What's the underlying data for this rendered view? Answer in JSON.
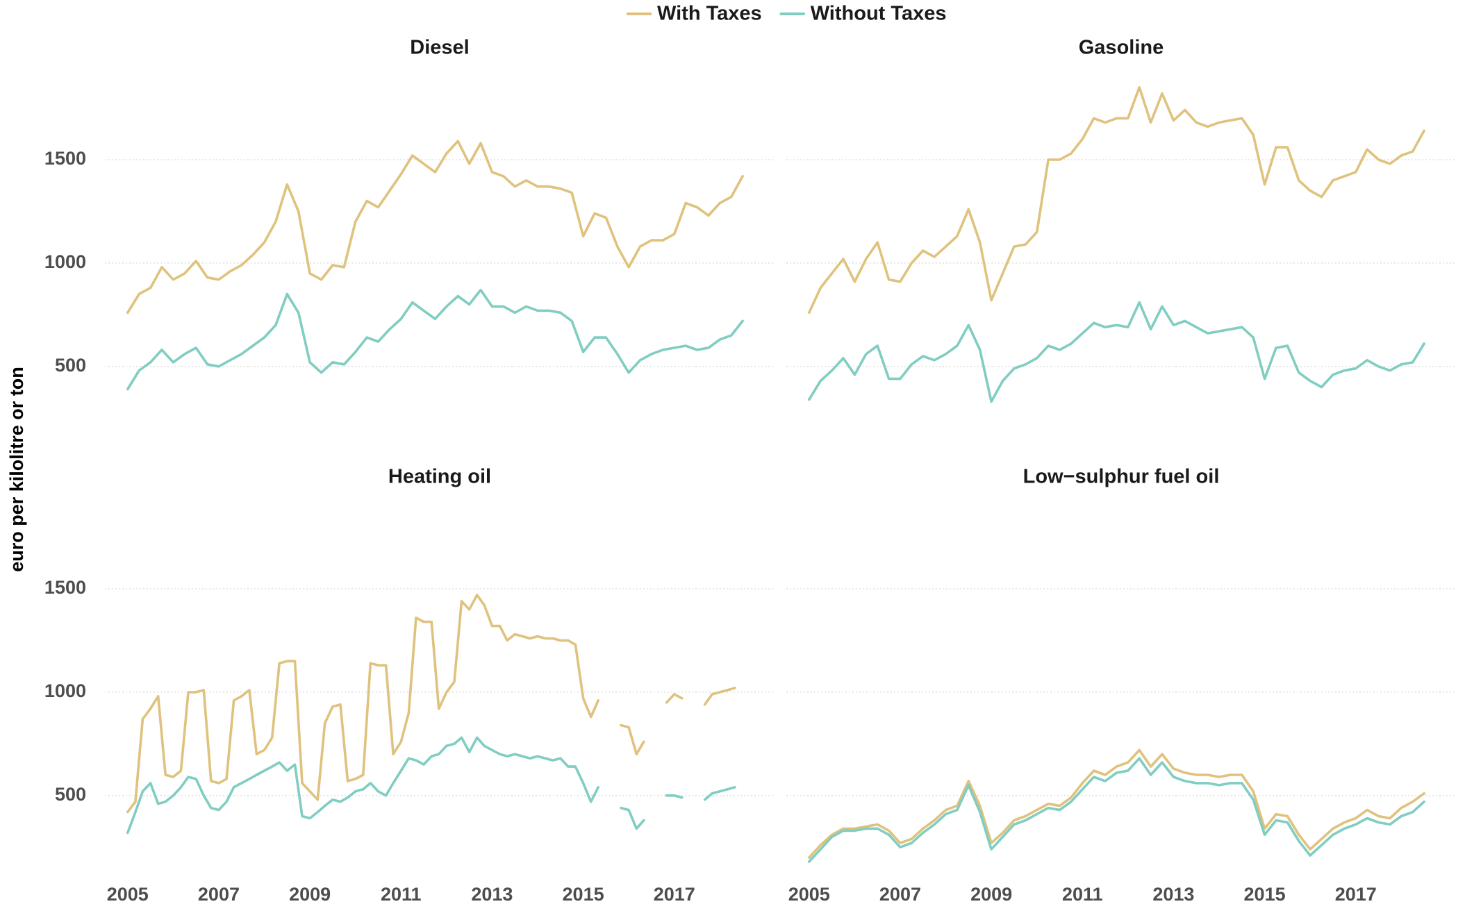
{
  "y_label": "euro per kilolitre or ton",
  "chart_data": [
    {
      "type": "line",
      "title": "Diesel",
      "x": [
        2005,
        2005.25,
        2005.5,
        2005.75,
        2006,
        2006.25,
        2006.5,
        2006.75,
        2007,
        2007.25,
        2007.5,
        2007.75,
        2008,
        2008.25,
        2008.5,
        2008.75,
        2009,
        2009.25,
        2009.5,
        2009.75,
        2010,
        2010.25,
        2010.5,
        2010.75,
        2011,
        2011.25,
        2011.5,
        2011.75,
        2012,
        2012.25,
        2012.5,
        2012.75,
        2013,
        2013.25,
        2013.5,
        2013.75,
        2014,
        2014.25,
        2014.5,
        2014.75,
        2015,
        2015.25,
        2015.5,
        2015.75,
        2016,
        2016.25,
        2016.5,
        2016.75,
        2017,
        2017.25,
        2017.5,
        2017.75,
        2018,
        2018.25,
        2018.5
      ],
      "series": [
        {
          "name": "With Taxes",
          "color": "#dfc27d",
          "values": [
            760,
            850,
            880,
            980,
            920,
            950,
            1010,
            930,
            920,
            960,
            990,
            1040,
            1100,
            1200,
            1380,
            1250,
            950,
            920,
            990,
            980,
            1200,
            1300,
            1270,
            1350,
            1430,
            1520,
            1480,
            1440,
            1530,
            1590,
            1480,
            1580,
            1440,
            1420,
            1370,
            1400,
            1370,
            1370,
            1360,
            1340,
            1130,
            1240,
            1220,
            1080,
            980,
            1080,
            1110,
            1110,
            1140,
            1290,
            1270,
            1230,
            1290,
            1320,
            1420
          ]
        },
        {
          "name": "Without Taxes",
          "color": "#80cdc1",
          "values": [
            390,
            480,
            520,
            580,
            520,
            560,
            590,
            510,
            500,
            530,
            560,
            600,
            640,
            700,
            850,
            760,
            520,
            470,
            520,
            510,
            570,
            640,
            620,
            680,
            730,
            810,
            770,
            730,
            790,
            840,
            800,
            870,
            790,
            790,
            760,
            790,
            770,
            770,
            760,
            720,
            570,
            640,
            640,
            560,
            470,
            530,
            560,
            580,
            590,
            600,
            580,
            590,
            630,
            650,
            720
          ]
        }
      ],
      "xlim": [
        2004.5,
        2019.2
      ],
      "ylim": [
        160,
        1950
      ],
      "yticks": [
        500,
        1000,
        1500
      ],
      "grid": true
    },
    {
      "type": "line",
      "title": "Gasoline",
      "x": [
        2005,
        2005.25,
        2005.5,
        2005.75,
        2006,
        2006.25,
        2006.5,
        2006.75,
        2007,
        2007.25,
        2007.5,
        2007.75,
        2008,
        2008.25,
        2008.5,
        2008.75,
        2009,
        2009.25,
        2009.5,
        2009.75,
        2010,
        2010.25,
        2010.5,
        2010.75,
        2011,
        2011.25,
        2011.5,
        2011.75,
        2012,
        2012.25,
        2012.5,
        2012.75,
        2013,
        2013.25,
        2013.5,
        2013.75,
        2014,
        2014.25,
        2014.5,
        2014.75,
        2015,
        2015.25,
        2015.5,
        2015.75,
        2016,
        2016.25,
        2016.5,
        2016.75,
        2017,
        2017.25,
        2017.5,
        2017.75,
        2018,
        2018.25,
        2018.5
      ],
      "series": [
        {
          "name": "With Taxes",
          "color": "#dfc27d",
          "values": [
            760,
            880,
            950,
            1020,
            910,
            1020,
            1100,
            920,
            910,
            1000,
            1060,
            1030,
            1080,
            1130,
            1260,
            1100,
            820,
            950,
            1080,
            1090,
            1150,
            1500,
            1500,
            1530,
            1600,
            1700,
            1680,
            1700,
            1700,
            1850,
            1680,
            1820,
            1690,
            1740,
            1680,
            1660,
            1680,
            1690,
            1700,
            1620,
            1380,
            1560,
            1560,
            1400,
            1350,
            1320,
            1400,
            1420,
            1440,
            1550,
            1500,
            1480,
            1520,
            1540,
            1640
          ]
        },
        {
          "name": "Without Taxes",
          "color": "#80cdc1",
          "values": [
            340,
            430,
            480,
            540,
            460,
            560,
            600,
            440,
            440,
            510,
            550,
            530,
            560,
            600,
            700,
            580,
            330,
            430,
            490,
            510,
            540,
            600,
            580,
            610,
            660,
            710,
            690,
            700,
            690,
            810,
            680,
            790,
            700,
            720,
            690,
            660,
            670,
            680,
            690,
            640,
            440,
            590,
            600,
            470,
            430,
            400,
            460,
            480,
            490,
            530,
            500,
            480,
            510,
            520,
            610
          ]
        }
      ],
      "xlim": [
        2004.5,
        2019.2
      ],
      "ylim": [
        160,
        1950
      ],
      "yticks": [
        500,
        1000,
        1500
      ],
      "grid": true
    },
    {
      "type": "line",
      "title": "Heating oil",
      "x": [
        2005,
        2005.17,
        2005.33,
        2005.5,
        2005.67,
        2005.83,
        2006,
        2006.17,
        2006.33,
        2006.5,
        2006.67,
        2006.83,
        2007,
        2007.17,
        2007.33,
        2007.5,
        2007.67,
        2007.83,
        2008,
        2008.17,
        2008.33,
        2008.5,
        2008.67,
        2008.83,
        2009,
        2009.17,
        2009.33,
        2009.5,
        2009.67,
        2009.83,
        2010,
        2010.17,
        2010.33,
        2010.5,
        2010.67,
        2010.83,
        2011,
        2011.17,
        2011.33,
        2011.5,
        2011.67,
        2011.83,
        2012,
        2012.17,
        2012.33,
        2012.5,
        2012.67,
        2012.83,
        2013,
        2013.17,
        2013.33,
        2013.5,
        2013.67,
        2013.83,
        2014,
        2014.17,
        2014.33,
        2014.5,
        2014.67,
        2014.83,
        2015,
        2015.17,
        2015.33,
        2015.5,
        2015.67,
        2015.83,
        2016,
        2016.17,
        2016.33,
        2016.5,
        2016.67,
        2016.83,
        2017,
        2017.17,
        2017.33,
        2017.5,
        2017.67,
        2017.83,
        2018,
        2018.17,
        2018.33
      ],
      "series": [
        {
          "name": "With Taxes",
          "color": "#dfc27d",
          "values": [
            420,
            470,
            870,
            920,
            980,
            600,
            590,
            620,
            1000,
            1000,
            1010,
            570,
            560,
            580,
            960,
            980,
            1010,
            700,
            720,
            780,
            1140,
            1150,
            1150,
            560,
            520,
            480,
            850,
            930,
            940,
            570,
            580,
            600,
            1140,
            1130,
            1130,
            700,
            760,
            900,
            1360,
            1340,
            1340,
            920,
            1000,
            1050,
            1440,
            1400,
            1470,
            1420,
            1320,
            1320,
            1250,
            1280,
            1270,
            1260,
            1270,
            1260,
            1260,
            1250,
            1250,
            1230,
            970,
            880,
            960,
            null,
            null,
            840,
            830,
            700,
            760,
            null,
            null,
            950,
            990,
            970,
            null,
            null,
            940,
            990,
            1000,
            1010,
            1020
          ]
        },
        {
          "name": "Without Taxes",
          "color": "#80cdc1",
          "values": [
            320,
            420,
            520,
            560,
            460,
            470,
            500,
            540,
            590,
            580,
            500,
            440,
            430,
            470,
            540,
            560,
            580,
            600,
            620,
            640,
            660,
            620,
            650,
            400,
            390,
            420,
            450,
            480,
            470,
            490,
            520,
            530,
            560,
            520,
            500,
            560,
            620,
            680,
            670,
            650,
            690,
            700,
            740,
            750,
            780,
            710,
            780,
            740,
            720,
            700,
            690,
            700,
            690,
            680,
            690,
            680,
            670,
            680,
            640,
            640,
            560,
            470,
            540,
            null,
            null,
            440,
            430,
            340,
            380,
            null,
            null,
            500,
            500,
            490,
            null,
            null,
            480,
            510,
            520,
            530,
            540
          ]
        }
      ],
      "xlim": [
        2004.5,
        2019.2
      ],
      "ylim": [
        160,
        1950
      ],
      "xticks": [
        2005,
        2007,
        2009,
        2011,
        2013,
        2015,
        2017
      ],
      "yticks": [
        500,
        1000,
        1500
      ],
      "grid": true
    },
    {
      "type": "line",
      "title": "Low−sulphur fuel oil",
      "x": [
        2005,
        2005.25,
        2005.5,
        2005.75,
        2006,
        2006.25,
        2006.5,
        2006.75,
        2007,
        2007.25,
        2007.5,
        2007.75,
        2008,
        2008.25,
        2008.5,
        2008.75,
        2009,
        2009.25,
        2009.5,
        2009.75,
        2010,
        2010.25,
        2010.5,
        2010.75,
        2011,
        2011.25,
        2011.5,
        2011.75,
        2012,
        2012.25,
        2012.5,
        2012.75,
        2013,
        2013.25,
        2013.5,
        2013.75,
        2014,
        2014.25,
        2014.5,
        2014.75,
        2015,
        2015.25,
        2015.5,
        2015.75,
        2016,
        2016.25,
        2016.5,
        2016.75,
        2017,
        2017.25,
        2017.5,
        2017.75,
        2018,
        2018.25,
        2018.5
      ],
      "series": [
        {
          "name": "With Taxes",
          "color": "#dfc27d",
          "values": [
            200,
            260,
            310,
            340,
            340,
            350,
            360,
            330,
            270,
            290,
            340,
            380,
            430,
            450,
            570,
            450,
            270,
            320,
            380,
            400,
            430,
            460,
            450,
            490,
            560,
            620,
            600,
            640,
            660,
            720,
            640,
            700,
            630,
            610,
            600,
            600,
            590,
            600,
            600,
            520,
            340,
            410,
            400,
            310,
            240,
            290,
            340,
            370,
            390,
            430,
            400,
            390,
            440,
            470,
            510
          ]
        },
        {
          "name": "Without Taxes",
          "color": "#80cdc1",
          "values": [
            180,
            240,
            300,
            330,
            330,
            340,
            340,
            310,
            250,
            270,
            320,
            360,
            410,
            430,
            550,
            420,
            240,
            300,
            360,
            380,
            410,
            440,
            430,
            470,
            530,
            590,
            570,
            610,
            620,
            680,
            600,
            660,
            590,
            570,
            560,
            560,
            550,
            560,
            560,
            480,
            310,
            380,
            370,
            280,
            210,
            260,
            310,
            340,
            360,
            390,
            370,
            360,
            400,
            420,
            470
          ]
        }
      ],
      "xlim": [
        2004.5,
        2019.2
      ],
      "ylim": [
        160,
        1950
      ],
      "xticks": [
        2005,
        2007,
        2009,
        2011,
        2013,
        2015,
        2017
      ],
      "yticks": [
        500,
        1000,
        1500
      ],
      "grid": true
    }
  ]
}
